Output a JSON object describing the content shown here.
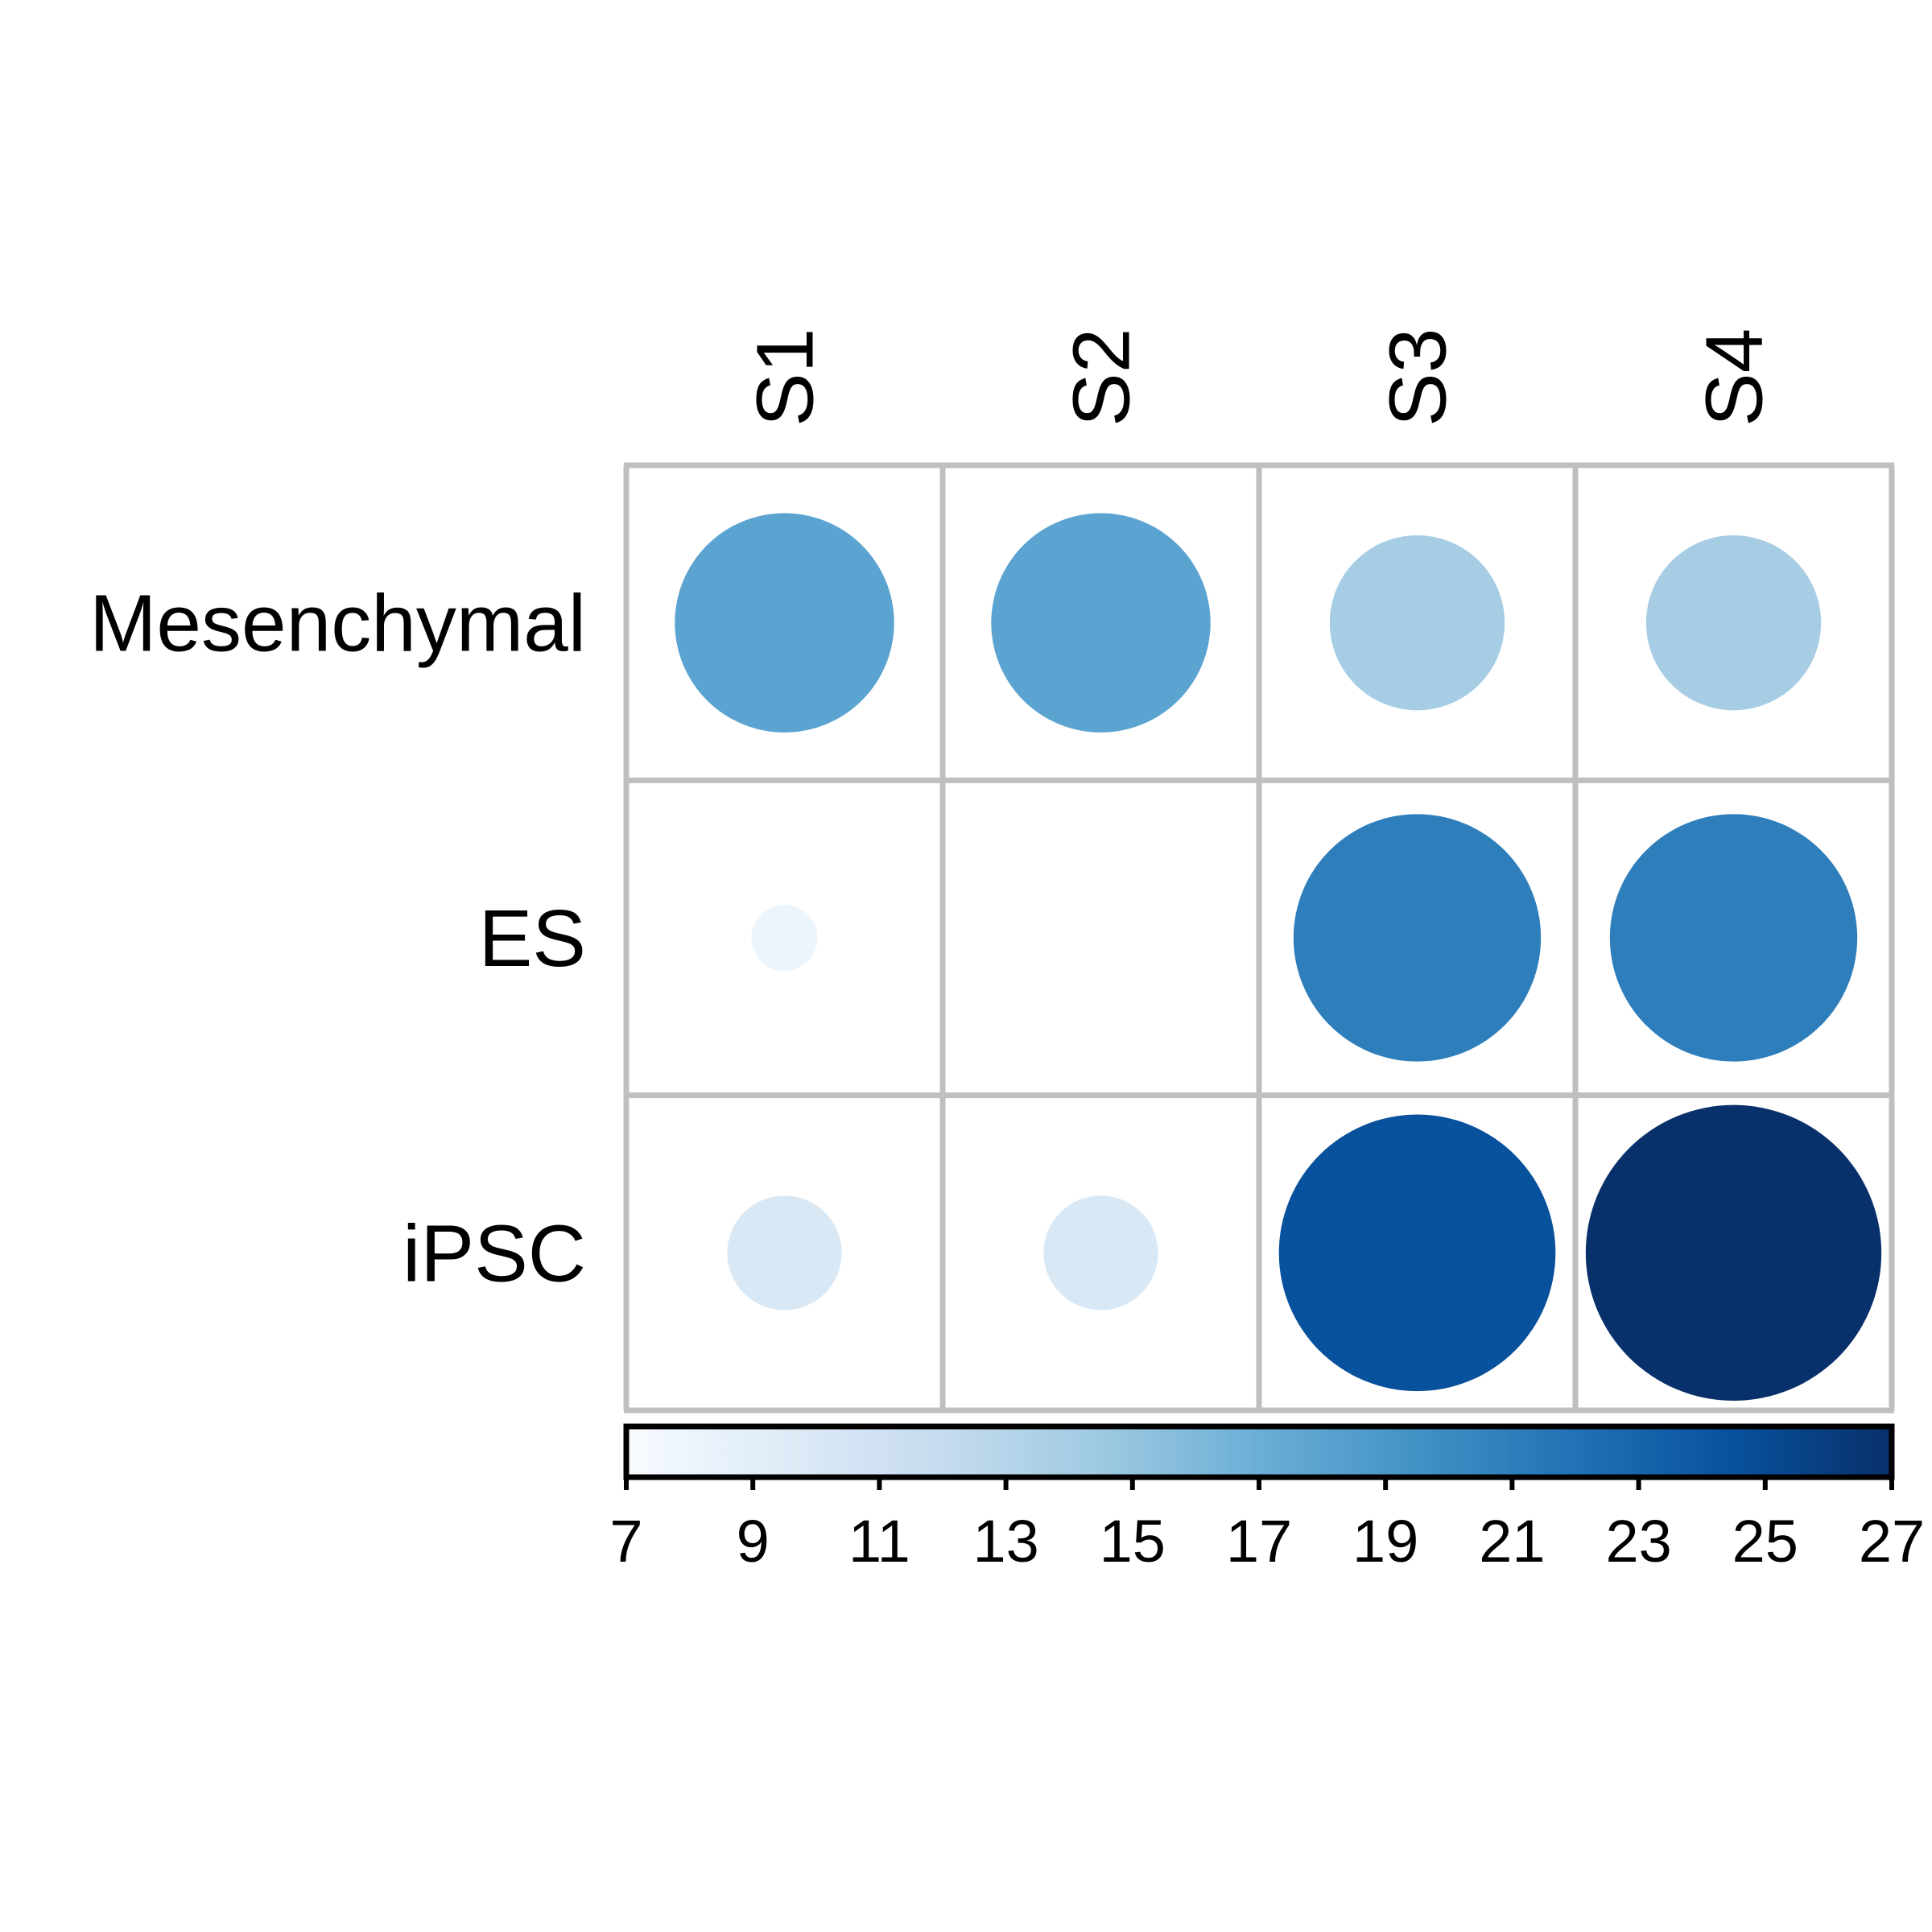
{
  "chart_data": {
    "type": "heatmap",
    "rows": [
      "Mesenchymal",
      "ES",
      "iPSC"
    ],
    "columns": [
      "S1",
      "S2",
      "S3",
      "S4"
    ],
    "values": [
      [
        18,
        18,
        14,
        14
      ],
      [
        8,
        7,
        21,
        21
      ],
      [
        10,
        10,
        24.5,
        27
      ]
    ],
    "colorbar": {
      "min": 7,
      "max": 27,
      "ticks": [
        "7",
        "9",
        "11",
        "13",
        "15",
        "17",
        "19",
        "21",
        "23",
        "25",
        "27"
      ],
      "orientation": "horizontal",
      "placement": "bottom"
    },
    "colors": [
      "#f7fbff",
      "#deebf7",
      "#c6dbef",
      "#9ecae1",
      "#6baed6",
      "#4292c6",
      "#2171b5",
      "#08519c",
      "#08306b"
    ],
    "grid_color": "#bfbfbf",
    "marker": "circle",
    "marker_size_encodes_value": true,
    "title": "",
    "xlabel": "",
    "ylabel": ""
  }
}
